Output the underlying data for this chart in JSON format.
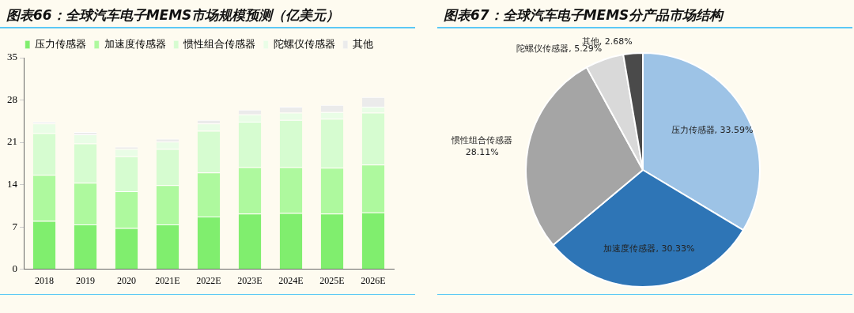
{
  "chart_data": [
    {
      "type": "bar",
      "title": "图表66：全球汽车电子MEMS市场规模预测（亿美元）",
      "stacked": true,
      "legend": "top",
      "grid": false,
      "categories": [
        "2018",
        "2019",
        "2020",
        "2021E",
        "2022E",
        "2023E",
        "2024E",
        "2025E",
        "2026E"
      ],
      "series": [
        {
          "name": "压力传感器",
          "color": "#80ee6e",
          "values": [
            8.0,
            7.4,
            6.8,
            7.4,
            8.7,
            9.2,
            9.3,
            9.2,
            9.4
          ]
        },
        {
          "name": "加速度传感器",
          "color": "#aef99e",
          "values": [
            7.6,
            6.9,
            6.1,
            6.5,
            7.3,
            7.7,
            7.6,
            7.6,
            7.9
          ]
        },
        {
          "name": "惯性组合传感器",
          "color": "#d6fcd0",
          "values": [
            6.9,
            6.5,
            5.8,
            6.0,
            6.9,
            7.5,
            7.8,
            8.1,
            8.6
          ]
        },
        {
          "name": "陀螺仪传感器",
          "color": "#e9fde6",
          "values": [
            1.6,
            1.5,
            1.2,
            1.2,
            1.2,
            1.2,
            1.2,
            1.1,
            1.0
          ]
        },
        {
          "name": "其他",
          "color": "#ebebeb",
          "values": [
            0.3,
            0.4,
            0.4,
            0.5,
            0.6,
            0.8,
            1.0,
            1.2,
            1.6
          ]
        }
      ],
      "ylim": [
        0,
        35
      ],
      "yticks": [
        0,
        7,
        14,
        21,
        28,
        35
      ]
    },
    {
      "type": "pie",
      "title": "图表67：全球汽车电子MEMS分产品市场结构",
      "categories": [
        "压力传感器",
        "加速度传感器",
        "惯性组合传感器",
        "陀螺仪传感器",
        "其他"
      ],
      "values": [
        33.59,
        30.33,
        28.11,
        5.29,
        2.68
      ],
      "colors": [
        "#9dc3e6",
        "#2e75b6",
        "#a5a5a5",
        "#d9d9d9",
        "#4a4a4a"
      ],
      "value_labels": [
        "33.59%",
        "30.33%",
        "28.11%",
        "5.29%",
        "2.68%"
      ]
    }
  ]
}
